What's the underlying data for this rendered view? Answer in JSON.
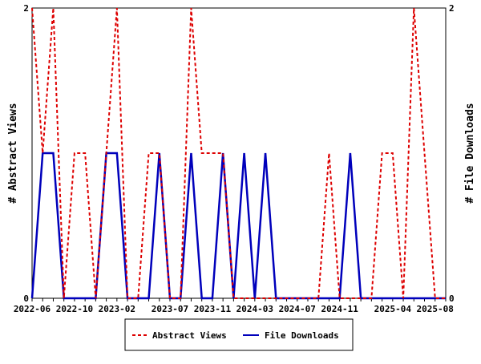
{
  "chart_data": {
    "type": "line",
    "title": "",
    "ylabel_left": "# Abstract Views",
    "ylabel_right": "# File Downloads",
    "ylim": [
      0,
      2
    ],
    "y_ticks": [
      "0",
      "2"
    ],
    "x": [
      "2022-06",
      "2022-07",
      "2022-08",
      "2022-09",
      "2022-10",
      "2022-11",
      "2022-12",
      "2023-01",
      "2023-02",
      "2023-03",
      "2023-04",
      "2023-05",
      "2023-06",
      "2023-07",
      "2023-08",
      "2023-09",
      "2023-10",
      "2023-11",
      "2023-12",
      "2024-01",
      "2024-02",
      "2024-03",
      "2024-04",
      "2024-05",
      "2024-06",
      "2024-07",
      "2024-08",
      "2024-09",
      "2024-10",
      "2024-11",
      "2024-12",
      "2025-01",
      "2025-02",
      "2025-03",
      "2025-04",
      "2025-05",
      "2025-06",
      "2025-07",
      "2025-08",
      "2025-09"
    ],
    "x_tick_labels": [
      "2022-06",
      "2022-10",
      "2023-02",
      "2023-07",
      "2023-11",
      "2024-03",
      "2024-07",
      "2024-11",
      "2025-04",
      "2025-08"
    ],
    "series": [
      {
        "name": "Abstract Views",
        "color": "#dd0000",
        "dash": "dashed",
        "values": [
          2,
          1,
          2,
          0,
          1,
          1,
          0,
          1,
          2,
          0,
          0,
          1,
          1,
          0,
          0,
          2,
          1,
          1,
          1,
          0,
          0,
          0,
          0,
          0,
          0,
          0,
          0,
          0,
          1,
          0,
          0,
          0,
          0,
          1,
          1,
          0,
          2,
          1,
          0,
          0
        ]
      },
      {
        "name": "File Downloads",
        "color": "#0000bb",
        "dash": "solid",
        "values": [
          0,
          1,
          1,
          0,
          0,
          0,
          0,
          1,
          1,
          0,
          0,
          0,
          1,
          0,
          0,
          1,
          0,
          0,
          1,
          0,
          1,
          0,
          1,
          0,
          0,
          0,
          0,
          0,
          0,
          0,
          1,
          0,
          0,
          0,
          0,
          0,
          0,
          0,
          0,
          0
        ]
      }
    ],
    "grid": false,
    "legend": "bottom"
  }
}
